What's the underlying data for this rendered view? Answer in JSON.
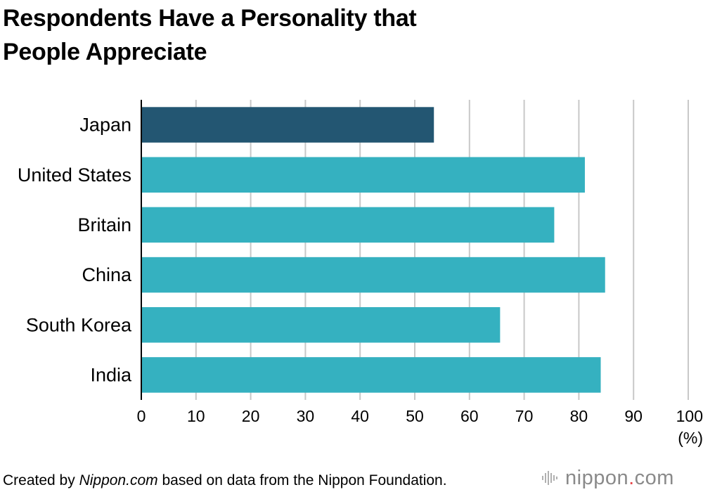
{
  "title_lines": [
    "Respondents Have a Personality that",
    "People Appreciate"
  ],
  "chart_data": {
    "type": "bar",
    "orientation": "horizontal",
    "title": "Respondents Have a Personality that People Appreciate",
    "categories": [
      "Japan",
      "United States",
      "Britain",
      "China",
      "South Korea",
      "India"
    ],
    "values": [
      53.5,
      81.1,
      75.5,
      84.8,
      65.6,
      84.0
    ],
    "xlim": [
      0,
      100
    ],
    "xticks": [
      0,
      10,
      20,
      30,
      40,
      50,
      60,
      70,
      80,
      90,
      100
    ],
    "xunit": "(%)",
    "grid": true,
    "colors": {
      "highlight": "#235672",
      "bar": "#35b1c0",
      "grid": "#c8c8c8",
      "axis": "#000000"
    },
    "highlight_category": "Japan"
  },
  "footer": {
    "prefix": "Created by ",
    "source_name": "Nippon.com",
    "suffix": " based on data from the Nippon Foundation."
  },
  "brand": {
    "text_main": "nippon",
    "text_dot": ".",
    "text_tld": "com",
    "icon": "nippon-logo-bars-icon",
    "dot_color": "#e8474a",
    "text_color": "#8a8a8a"
  }
}
